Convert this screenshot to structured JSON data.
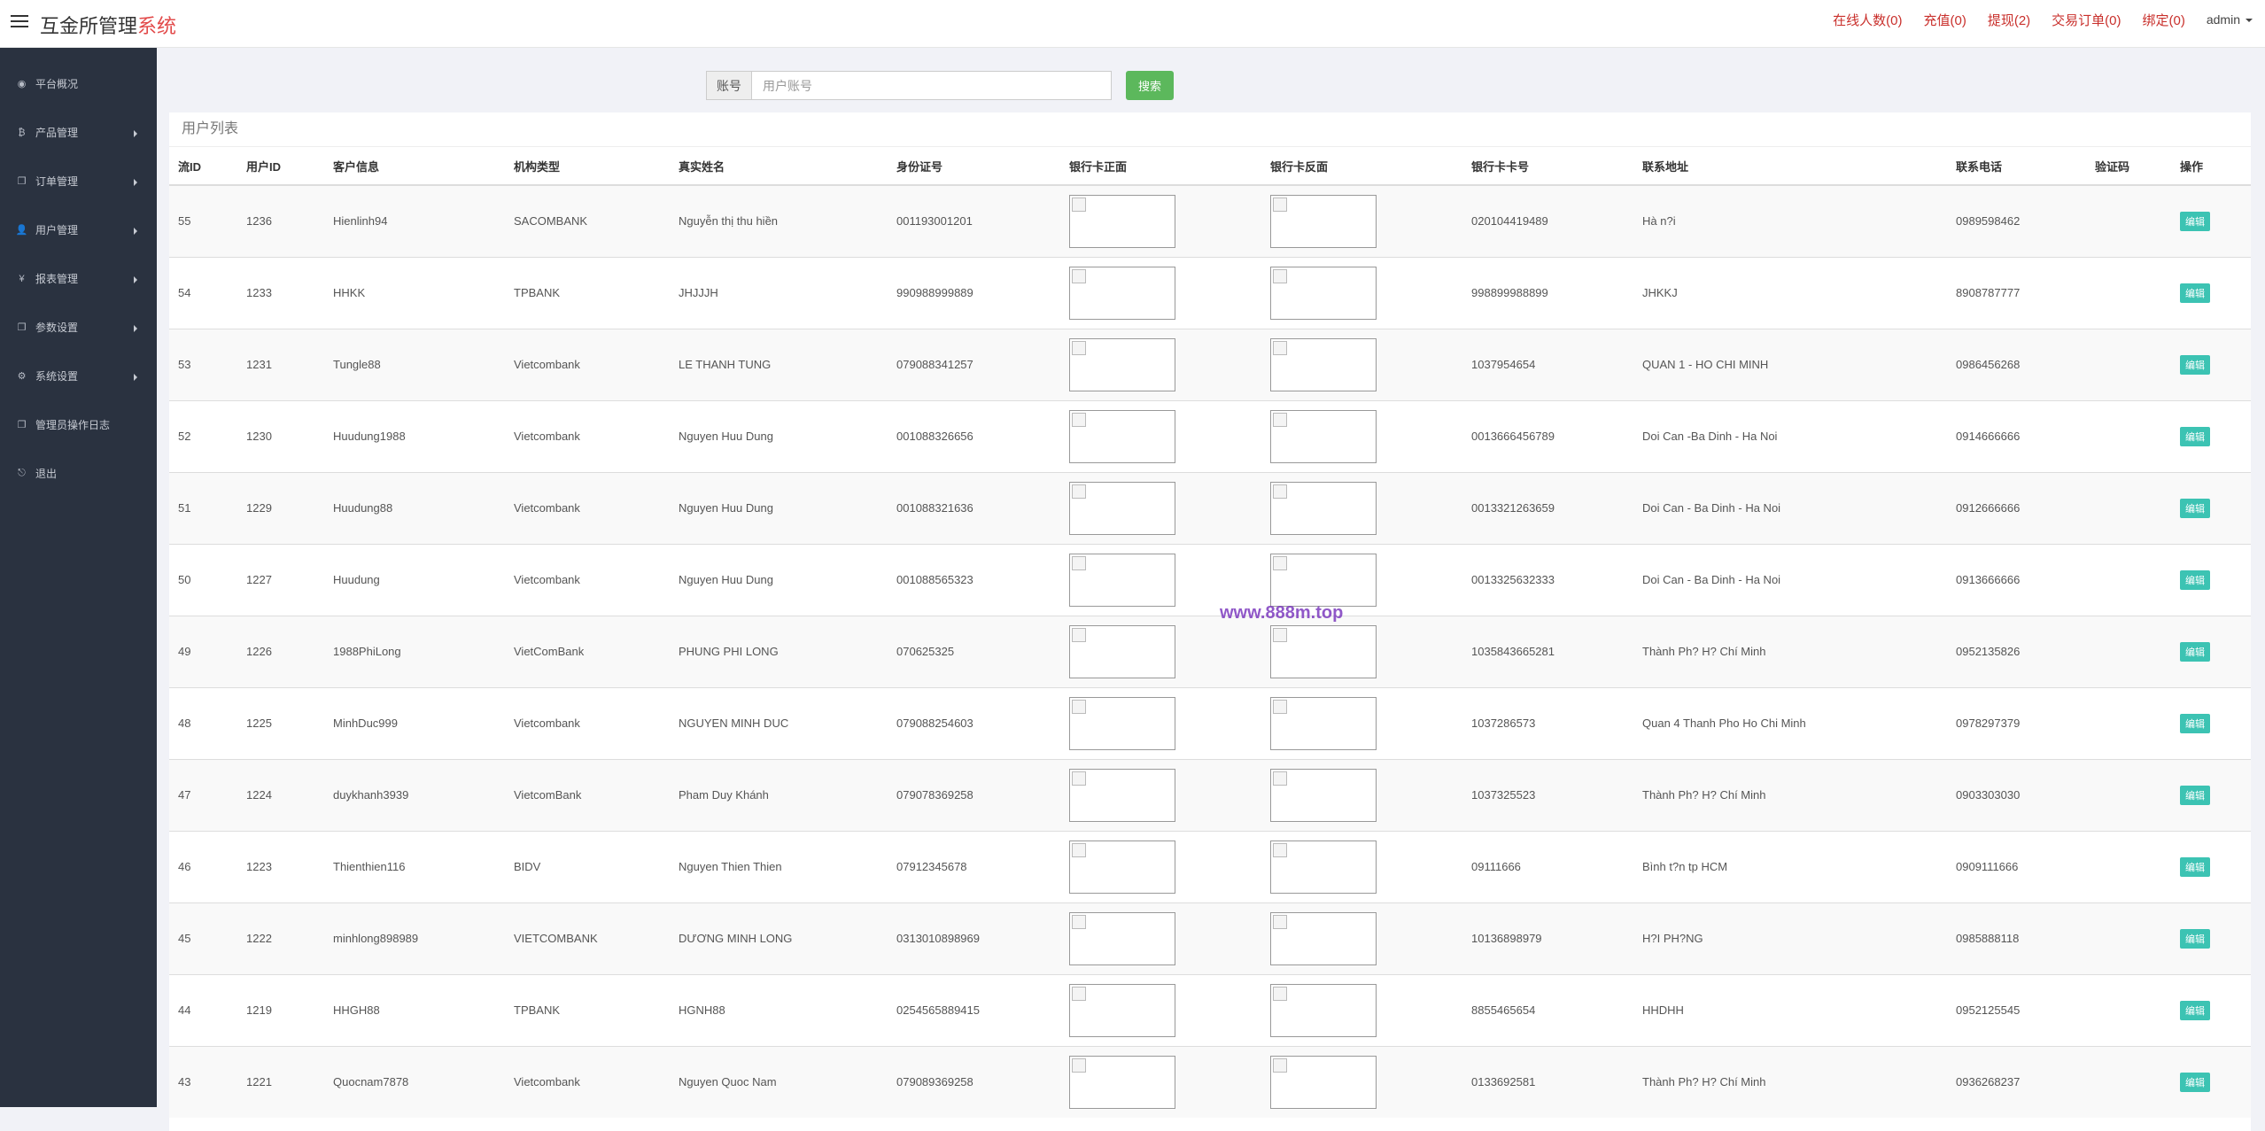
{
  "header": {
    "logo_main": "互金所管理",
    "logo_accent": "系统",
    "links": [
      "在线人数(0)",
      "充值(0)",
      "提现(2)",
      "交易订单(0)",
      "绑定(0)"
    ],
    "user": "admin"
  },
  "sidebar": {
    "items": [
      {
        "label": "平台概况",
        "icon": "dashboard-icon",
        "glyph": "◉",
        "arrow": false
      },
      {
        "label": "产品管理",
        "icon": "bitcoin-icon",
        "glyph": "₿",
        "arrow": true
      },
      {
        "label": "订单管理",
        "icon": "documents-icon",
        "glyph": "❐",
        "arrow": true
      },
      {
        "label": "用户管理",
        "icon": "user-icon",
        "glyph": "👤",
        "arrow": true
      },
      {
        "label": "报表管理",
        "icon": "yen-icon",
        "glyph": "¥",
        "arrow": true
      },
      {
        "label": "参数设置",
        "icon": "copy-icon",
        "glyph": "❐",
        "arrow": true
      },
      {
        "label": "系统设置",
        "icon": "cogs-icon",
        "glyph": "⚙",
        "arrow": true
      },
      {
        "label": "管理员操作日志",
        "icon": "file-icon",
        "glyph": "❐",
        "arrow": false
      },
      {
        "label": "退出",
        "icon": "sign-out-icon",
        "glyph": "⎋",
        "arrow": false
      }
    ]
  },
  "search": {
    "addon_label": "账号",
    "placeholder": "用户账号",
    "button_label": "搜索"
  },
  "panel": {
    "title": "用户列表"
  },
  "table": {
    "columns": [
      "流ID",
      "用户ID",
      "客户信息",
      "机构类型",
      "真实姓名",
      "身份证号",
      "银行卡正面",
      "银行卡反面",
      "银行卡卡号",
      "联系地址",
      "联系电话",
      "验证码",
      "操作"
    ],
    "edit_label": "编辑",
    "rows": [
      [
        "55",
        "1236",
        "Hienlinh94",
        "SACOMBANK",
        "Nguyễn thị thu hiền",
        "001193001201",
        "",
        "",
        "020104419489",
        "Hà n?i",
        "0989598462",
        ""
      ],
      [
        "54",
        "1233",
        "HHKK",
        "TPBANK",
        "JHJJJH",
        "990988999889",
        "",
        "",
        "998899988899",
        "JHKKJ",
        "8908787777",
        ""
      ],
      [
        "53",
        "1231",
        "Tungle88",
        "Vietcombank",
        "LE THANH TUNG",
        "079088341257",
        "",
        "",
        "1037954654",
        "QUAN 1 - HO CHI MINH",
        "0986456268",
        ""
      ],
      [
        "52",
        "1230",
        "Huudung1988",
        "Vietcombank",
        "Nguyen Huu Dung",
        "001088326656",
        "",
        "",
        "0013666456789",
        "Doi Can -Ba Dinh - Ha Noi",
        "0914666666",
        ""
      ],
      [
        "51",
        "1229",
        "Huudung88",
        "Vietcombank",
        "Nguyen Huu Dung",
        "001088321636",
        "",
        "",
        "0013321263659",
        "Doi Can - Ba Dinh - Ha Noi",
        "0912666666",
        ""
      ],
      [
        "50",
        "1227",
        "Huudung",
        "Vietcombank",
        "Nguyen Huu Dung",
        "001088565323",
        "",
        "",
        "0013325632333",
        "Doi Can - Ba Dinh - Ha Noi",
        "0913666666",
        ""
      ],
      [
        "49",
        "1226",
        "1988PhiLong",
        "VietComBank",
        "PHUNG PHI LONG",
        "070625325",
        "",
        "",
        "1035843665281",
        "Thành Ph? H? Chí Minh",
        "0952135826",
        ""
      ],
      [
        "48",
        "1225",
        "MinhDuc999",
        "Vietcombank",
        "NGUYEN MINH DUC",
        "079088254603",
        "",
        "",
        "1037286573",
        "Quan 4 Thanh Pho Ho Chi Minh",
        "0978297379",
        ""
      ],
      [
        "47",
        "1224",
        "duykhanh3939",
        "VietcomBank",
        "Pham Duy Khánh",
        "079078369258",
        "",
        "",
        "1037325523",
        "Thành Ph? H? Chí Minh",
        "0903303030",
        ""
      ],
      [
        "46",
        "1223",
        "Thienthien116",
        "BIDV",
        "Nguyen Thien Thien",
        "07912345678",
        "",
        "",
        "09111666",
        "Bình t?n tp HCM",
        "0909111666",
        ""
      ],
      [
        "45",
        "1222",
        "minhlong898989",
        "VIETCOMBANK",
        "DƯƠNG MINH LONG",
        "0313010898969",
        "",
        "",
        "10136898979",
        "H?I PH?NG",
        "0985888118",
        ""
      ],
      [
        "44",
        "1219",
        "HHGH88",
        "TPBANK",
        "HGNH88",
        "0254565889415",
        "",
        "",
        "8855465654",
        "HHDHH",
        "0952125545",
        ""
      ],
      [
        "43",
        "1221",
        "Quocnam7878",
        "Vietcombank",
        "Nguyen Quoc Nam",
        "079089369258",
        "",
        "",
        "0133692581",
        "Thành Ph? H? Chí Minh",
        "0936268237",
        ""
      ]
    ]
  },
  "watermark": "www.888m.top"
}
